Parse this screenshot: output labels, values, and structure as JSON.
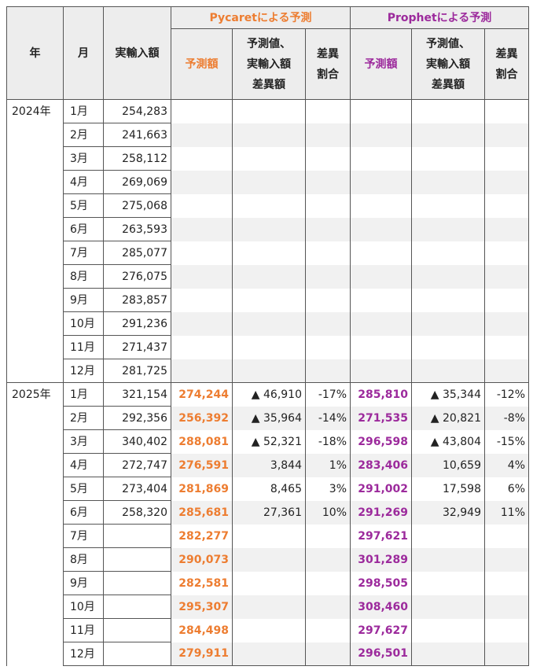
{
  "headers": {
    "year": "年",
    "month": "月",
    "actual": "実輸入額",
    "pycaret_group": "Pycaretによる予測",
    "prophet_group": "Prophetによる予測",
    "forecast": "予測額",
    "diff_line1": "予測値、",
    "diff_line2": "実輸入額",
    "diff_line3": "差異額",
    "ratio_line1": "差異",
    "ratio_line2": "割合"
  },
  "rows": [
    {
      "year": "2024年",
      "month": "1月",
      "actual": "254,283",
      "pc_pred": "",
      "pc_diff": "",
      "pc_ratio": "",
      "pr_pred": "",
      "pr_diff": "",
      "pr_ratio": ""
    },
    {
      "year": "",
      "month": "2月",
      "actual": "241,663",
      "pc_pred": "",
      "pc_diff": "",
      "pc_ratio": "",
      "pr_pred": "",
      "pr_diff": "",
      "pr_ratio": ""
    },
    {
      "year": "",
      "month": "3月",
      "actual": "258,112",
      "pc_pred": "",
      "pc_diff": "",
      "pc_ratio": "",
      "pr_pred": "",
      "pr_diff": "",
      "pr_ratio": ""
    },
    {
      "year": "",
      "month": "4月",
      "actual": "269,069",
      "pc_pred": "",
      "pc_diff": "",
      "pc_ratio": "",
      "pr_pred": "",
      "pr_diff": "",
      "pr_ratio": ""
    },
    {
      "year": "",
      "month": "5月",
      "actual": "275,068",
      "pc_pred": "",
      "pc_diff": "",
      "pc_ratio": "",
      "pr_pred": "",
      "pr_diff": "",
      "pr_ratio": ""
    },
    {
      "year": "",
      "month": "6月",
      "actual": "263,593",
      "pc_pred": "",
      "pc_diff": "",
      "pc_ratio": "",
      "pr_pred": "",
      "pr_diff": "",
      "pr_ratio": ""
    },
    {
      "year": "",
      "month": "7月",
      "actual": "285,077",
      "pc_pred": "",
      "pc_diff": "",
      "pc_ratio": "",
      "pr_pred": "",
      "pr_diff": "",
      "pr_ratio": ""
    },
    {
      "year": "",
      "month": "8月",
      "actual": "276,075",
      "pc_pred": "",
      "pc_diff": "",
      "pc_ratio": "",
      "pr_pred": "",
      "pr_diff": "",
      "pr_ratio": ""
    },
    {
      "year": "",
      "month": "9月",
      "actual": "283,857",
      "pc_pred": "",
      "pc_diff": "",
      "pc_ratio": "",
      "pr_pred": "",
      "pr_diff": "",
      "pr_ratio": ""
    },
    {
      "year": "",
      "month": "10月",
      "actual": "291,236",
      "pc_pred": "",
      "pc_diff": "",
      "pc_ratio": "",
      "pr_pred": "",
      "pr_diff": "",
      "pr_ratio": ""
    },
    {
      "year": "",
      "month": "11月",
      "actual": "271,437",
      "pc_pred": "",
      "pc_diff": "",
      "pc_ratio": "",
      "pr_pred": "",
      "pr_diff": "",
      "pr_ratio": ""
    },
    {
      "year": "",
      "month": "12月",
      "actual": "281,725",
      "pc_pred": "",
      "pc_diff": "",
      "pc_ratio": "",
      "pr_pred": "",
      "pr_diff": "",
      "pr_ratio": ""
    },
    {
      "year": "2025年",
      "month": "1月",
      "actual": "321,154",
      "pc_pred": "274,244",
      "pc_diff": "▲ 46,910",
      "pc_ratio": "-17%",
      "pr_pred": "285,810",
      "pr_diff": "▲ 35,344",
      "pr_ratio": "-12%"
    },
    {
      "year": "",
      "month": "2月",
      "actual": "292,356",
      "pc_pred": "256,392",
      "pc_diff": "▲ 35,964",
      "pc_ratio": "-14%",
      "pr_pred": "271,535",
      "pr_diff": "▲ 20,821",
      "pr_ratio": "-8%"
    },
    {
      "year": "",
      "month": "3月",
      "actual": "340,402",
      "pc_pred": "288,081",
      "pc_diff": "▲ 52,321",
      "pc_ratio": "-18%",
      "pr_pred": "296,598",
      "pr_diff": "▲ 43,804",
      "pr_ratio": "-15%"
    },
    {
      "year": "",
      "month": "4月",
      "actual": "272,747",
      "pc_pred": "276,591",
      "pc_diff": "3,844",
      "pc_ratio": "1%",
      "pr_pred": "283,406",
      "pr_diff": "10,659",
      "pr_ratio": "4%"
    },
    {
      "year": "",
      "month": "5月",
      "actual": "273,404",
      "pc_pred": "281,869",
      "pc_diff": "8,465",
      "pc_ratio": "3%",
      "pr_pred": "291,002",
      "pr_diff": "17,598",
      "pr_ratio": "6%"
    },
    {
      "year": "",
      "month": "6月",
      "actual": "258,320",
      "pc_pred": "285,681",
      "pc_diff": "27,361",
      "pc_ratio": "10%",
      "pr_pred": "291,269",
      "pr_diff": "32,949",
      "pr_ratio": "11%"
    },
    {
      "year": "",
      "month": "7月",
      "actual": "",
      "pc_pred": "282,277",
      "pc_diff": "",
      "pc_ratio": "",
      "pr_pred": "297,621",
      "pr_diff": "",
      "pr_ratio": ""
    },
    {
      "year": "",
      "month": "8月",
      "actual": "",
      "pc_pred": "290,073",
      "pc_diff": "",
      "pc_ratio": "",
      "pr_pred": "301,289",
      "pr_diff": "",
      "pr_ratio": ""
    },
    {
      "year": "",
      "month": "9月",
      "actual": "",
      "pc_pred": "282,581",
      "pc_diff": "",
      "pc_ratio": "",
      "pr_pred": "298,505",
      "pr_diff": "",
      "pr_ratio": ""
    },
    {
      "year": "",
      "month": "10月",
      "actual": "",
      "pc_pred": "295,307",
      "pc_diff": "",
      "pc_ratio": "",
      "pr_pred": "308,460",
      "pr_diff": "",
      "pr_ratio": ""
    },
    {
      "year": "",
      "month": "11月",
      "actual": "",
      "pc_pred": "284,498",
      "pc_diff": "",
      "pc_ratio": "",
      "pr_pred": "297,627",
      "pr_diff": "",
      "pr_ratio": ""
    },
    {
      "year": "",
      "month": "12月",
      "actual": "",
      "pc_pred": "279,911",
      "pc_diff": "",
      "pc_ratio": "",
      "pr_pred": "296,501",
      "pr_diff": "",
      "pr_ratio": ""
    }
  ],
  "colors": {
    "pycaret": "#ed7d31",
    "prophet": "#9c2a9c",
    "header_bg": "#ededed",
    "stripe_bg": "#f1f1f1"
  }
}
